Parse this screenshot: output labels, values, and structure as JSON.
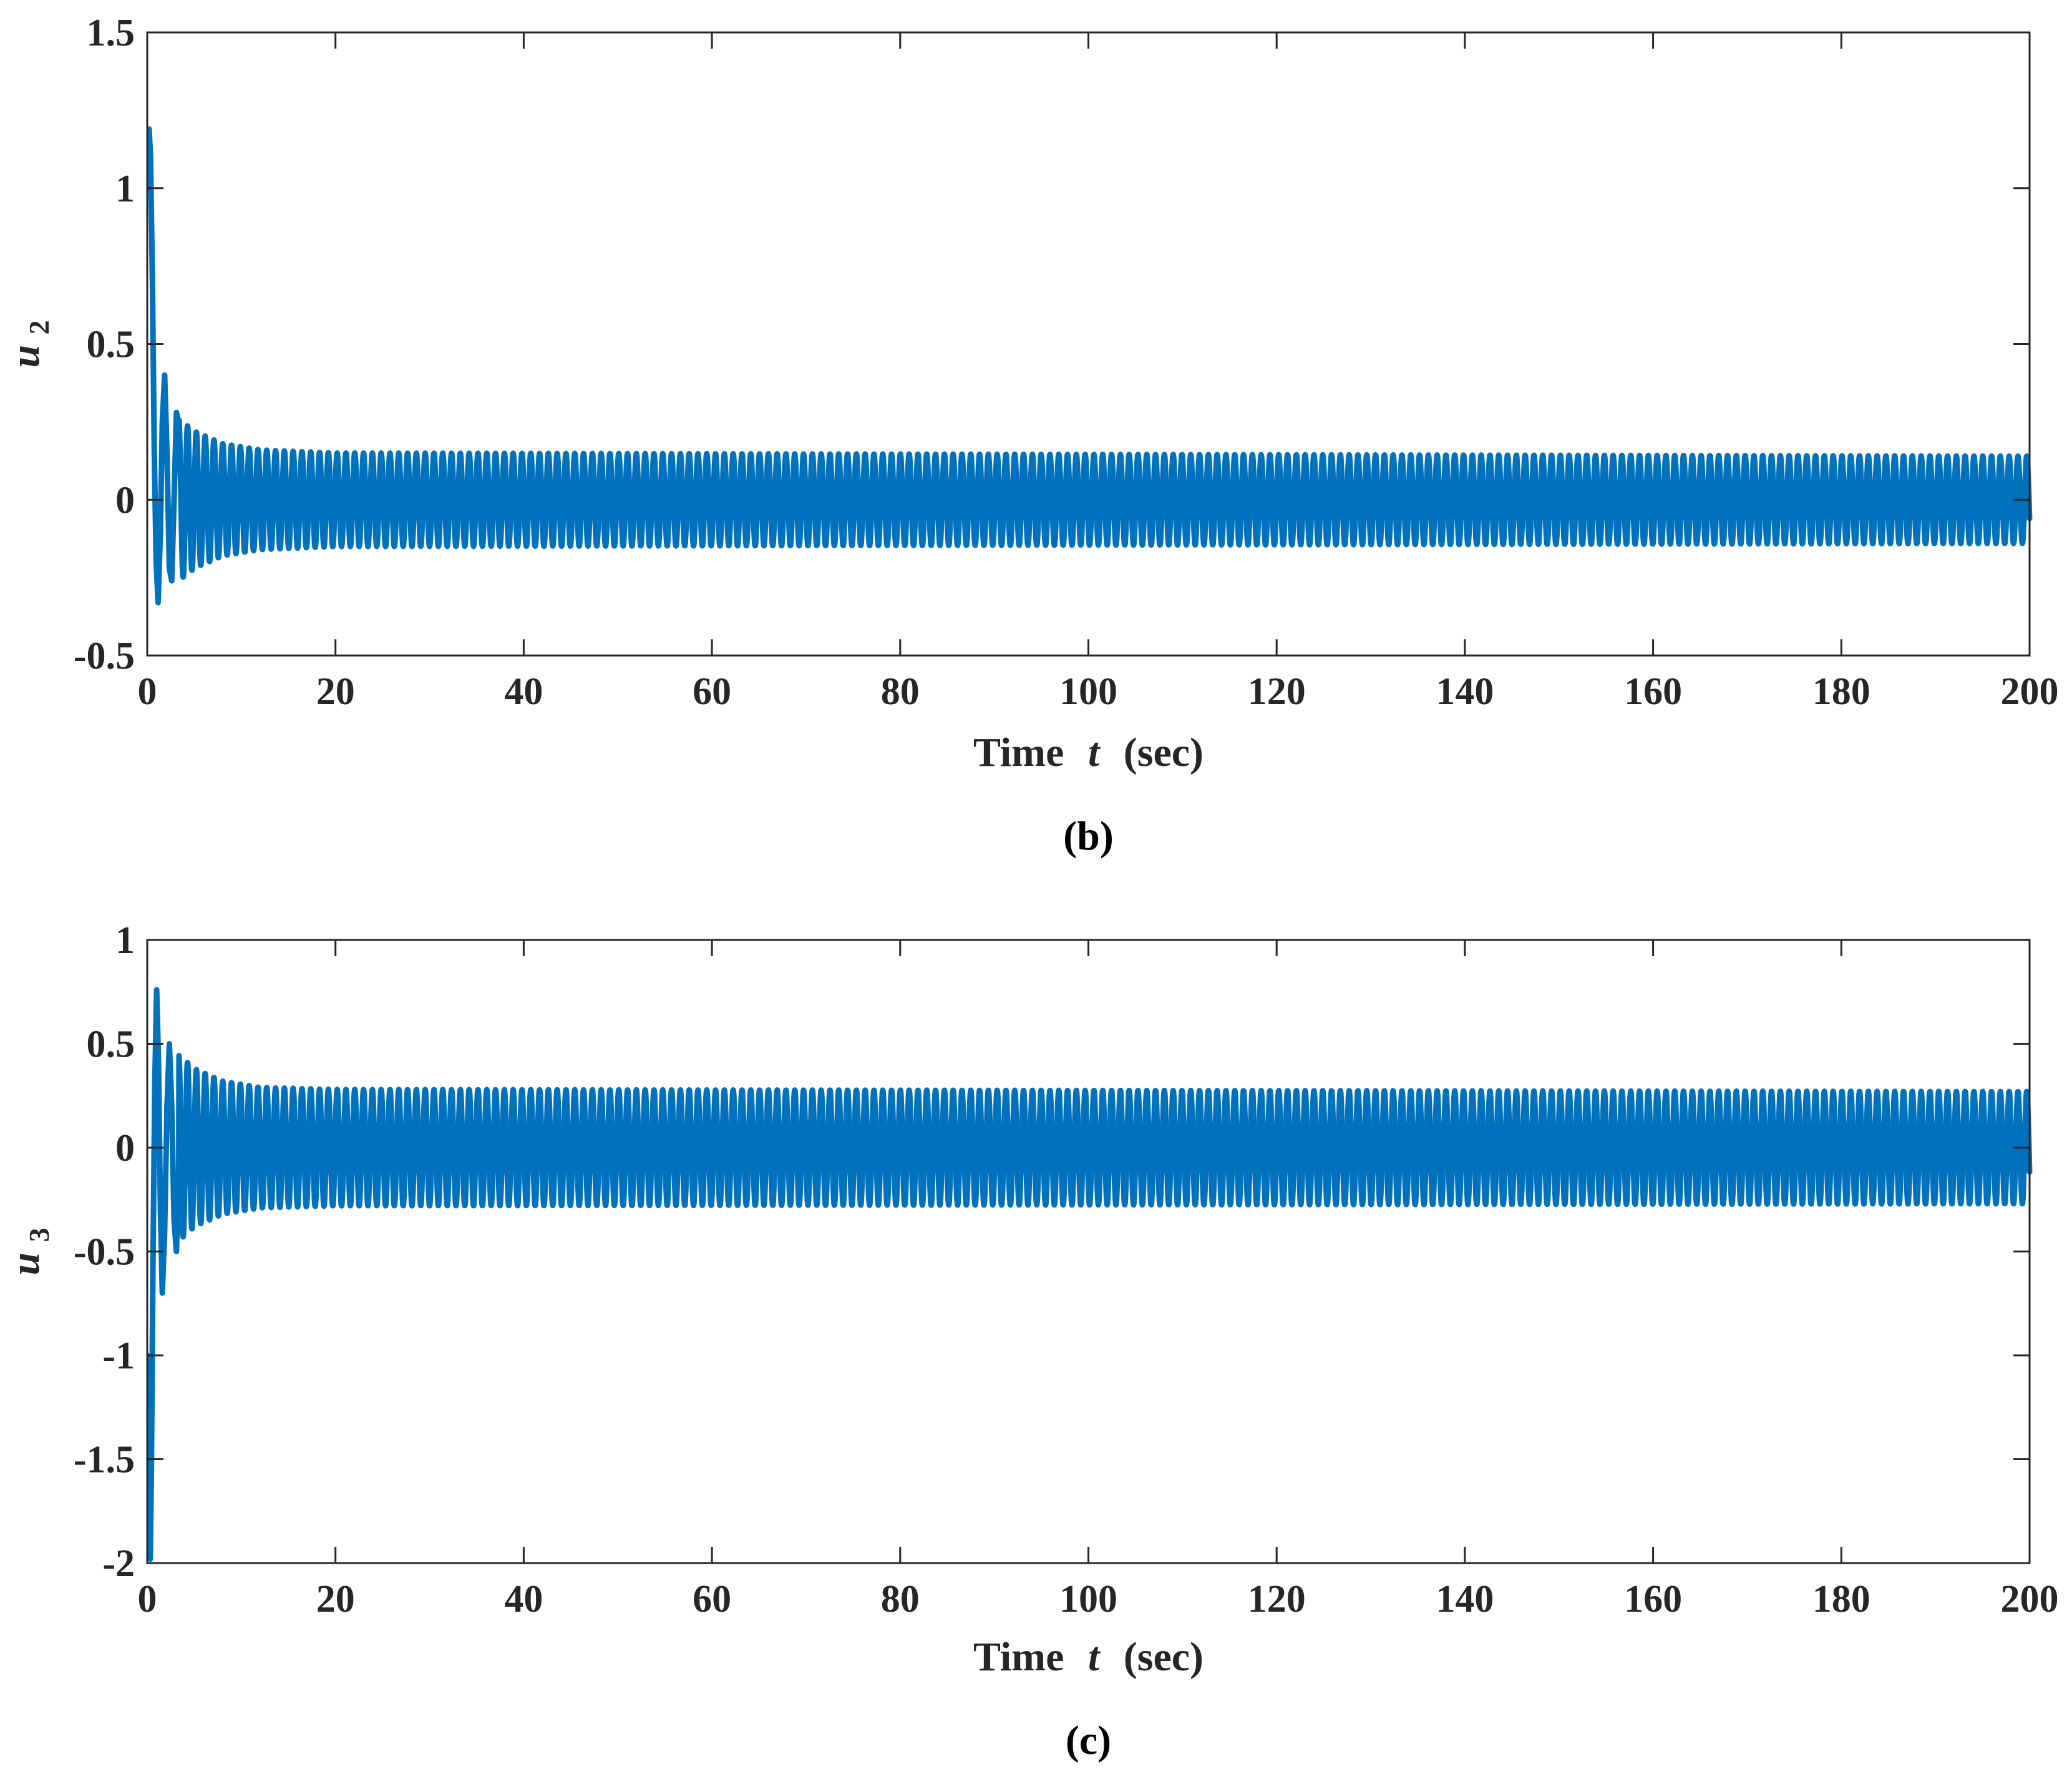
{
  "colors": {
    "series": "#0072BD",
    "axes": "#262626",
    "background": "#ffffff"
  },
  "chart_data": [
    {
      "type": "line",
      "panel_label": "(b)",
      "xlabel": {
        "text": "Time",
        "var": "t",
        "unit": "(sec)"
      },
      "ylabel": {
        "var": "u",
        "sub": "2"
      },
      "xlim": [
        0,
        200
      ],
      "ylim": [
        -0.5,
        1.5
      ],
      "xticks": [
        0,
        20,
        40,
        60,
        80,
        100,
        120,
        140,
        160,
        180,
        200
      ],
      "yticks": [
        -0.5,
        0,
        0.5,
        1,
        1.5
      ],
      "ytick_labels": [
        "-0.5",
        "0",
        "0.5",
        "1",
        "1.5"
      ],
      "grid": false,
      "series": [
        {
          "color": "#0072BD",
          "generator": {
            "kind": "damped_oscillation",
            "t_end": 200,
            "period": 0.935,
            "offset": 0.0,
            "steady_amplitude": 0.14,
            "transient": [
              [
                0,
                1.0
              ],
              [
                0.1,
                1.05
              ],
              [
                0.2,
                1.19
              ],
              [
                0.35,
                1.1
              ],
              [
                0.55,
                0.7
              ],
              [
                0.75,
                0.15
              ],
              [
                0.95,
                -0.2
              ],
              [
                1.15,
                -0.33
              ],
              [
                1.4,
                -0.1
              ],
              [
                1.6,
                0.25
              ],
              [
                1.85,
                0.4
              ],
              [
                2.1,
                0.15
              ],
              [
                2.35,
                -0.22
              ],
              [
                2.6,
                -0.26
              ],
              [
                2.85,
                0.0
              ],
              [
                3.1,
                0.28
              ],
              [
                3.35,
                0.24
              ]
            ],
            "envelope": [
              [
                3.35,
                0.26
              ],
              [
                5,
                0.22
              ],
              [
                8,
                0.18
              ],
              [
                12,
                0.16
              ],
              [
                20,
                0.15
              ],
              [
                200,
                0.14
              ]
            ]
          }
        }
      ]
    },
    {
      "type": "line",
      "panel_label": "(c)",
      "xlabel": {
        "text": "Time",
        "var": "t",
        "unit": "(sec)"
      },
      "ylabel": {
        "var": "u",
        "sub": "3"
      },
      "xlim": [
        0,
        200
      ],
      "ylim": [
        -2,
        1
      ],
      "xticks": [
        0,
        20,
        40,
        60,
        80,
        100,
        120,
        140,
        160,
        180,
        200
      ],
      "yticks": [
        -2,
        -1.5,
        -1,
        -0.5,
        0,
        0.5,
        1
      ],
      "ytick_labels": [
        "-2",
        "-1.5",
        "-1",
        "-0.5",
        "0",
        "0.5",
        "1"
      ],
      "grid": false,
      "series": [
        {
          "color": "#0072BD",
          "generator": {
            "kind": "damped_oscillation",
            "t_end": 200,
            "period": 0.935,
            "offset": 0.0,
            "steady_amplitude": 0.27,
            "transient": [
              [
                0,
                -1.0
              ],
              [
                0.1,
                -1.3
              ],
              [
                0.2,
                -1.7
              ],
              [
                0.32,
                -2.0
              ],
              [
                0.45,
                -1.5
              ],
              [
                0.6,
                -0.6
              ],
              [
                0.8,
                0.3
              ],
              [
                1.0,
                0.76
              ],
              [
                1.2,
                0.4
              ],
              [
                1.4,
                -0.3
              ],
              [
                1.6,
                -0.7
              ],
              [
                1.85,
                -0.4
              ],
              [
                2.1,
                0.2
              ],
              [
                2.35,
                0.5
              ],
              [
                2.6,
                0.2
              ],
              [
                2.85,
                -0.35
              ],
              [
                3.1,
                -0.5
              ],
              [
                3.35,
                -0.1
              ]
            ],
            "envelope": [
              [
                3.35,
                0.45
              ],
              [
                5,
                0.38
              ],
              [
                8,
                0.32
              ],
              [
                12,
                0.29
              ],
              [
                20,
                0.28
              ],
              [
                200,
                0.27
              ]
            ]
          }
        }
      ]
    }
  ]
}
